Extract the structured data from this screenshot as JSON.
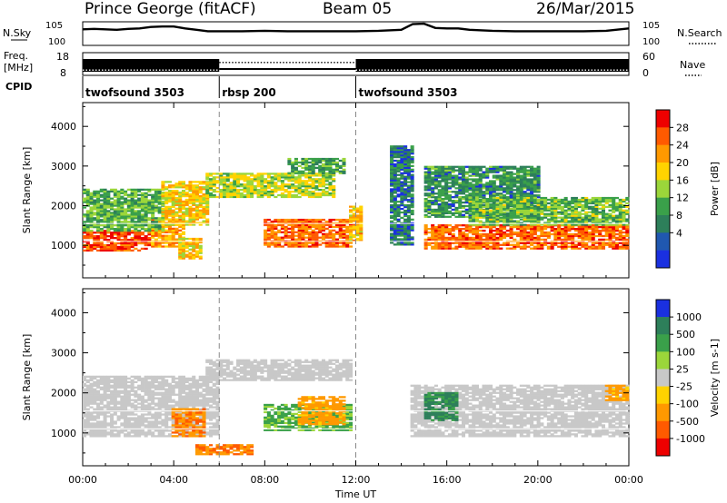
{
  "header": {
    "station": "Prince George (fitACF)",
    "beam": "Beam 05",
    "date": "26/Mar/2015"
  },
  "chart_data": [
    {
      "type": "line",
      "title": "",
      "ylabel": "N.Sky",
      "ylabel_right": "N.Search",
      "y_ticks_left": [
        "10^5",
        "10^0"
      ],
      "y_ticks_right": [
        "10^5",
        "10^0"
      ],
      "x_range_hours": [
        0,
        24
      ],
      "series": [
        {
          "name": "N.Sky",
          "style": "solid",
          "x_hours": [
            0,
            0.5,
            1,
            1.5,
            2,
            2.5,
            3,
            3.5,
            4,
            4.5,
            5,
            5.5,
            6,
            7,
            8,
            9,
            10,
            11,
            12,
            13,
            14,
            14.5,
            15,
            15.5,
            16,
            16.5,
            17,
            18,
            19,
            20,
            21,
            22,
            23,
            24
          ],
          "log_value": [
            3.4,
            3.5,
            3.4,
            3.3,
            3.5,
            3.6,
            3.9,
            4.0,
            4.0,
            3.6,
            3.3,
            3.0,
            3.0,
            3.0,
            3.1,
            3.0,
            3.0,
            3.0,
            3.0,
            3.1,
            3.3,
            4.5,
            4.6,
            3.7,
            3.6,
            3.6,
            3.3,
            3.1,
            3.0,
            3.0,
            3.0,
            3.0,
            3.1,
            3.6
          ]
        },
        {
          "name": "N.Search",
          "style": "dotted",
          "x_hours": [
            0,
            24
          ],
          "log_value": [
            0.0,
            0.0
          ]
        }
      ]
    },
    {
      "type": "line",
      "title": "",
      "ylabel": "Freq. [MHz]",
      "ylabel_right": "Nave",
      "y_ticks_left": [
        "18",
        "8"
      ],
      "y_ticks_right": [
        "60",
        "0"
      ],
      "x_range_hours": [
        0,
        24
      ],
      "series": [
        {
          "name": "Freq.",
          "style": "solid",
          "segments": [
            {
              "x0": 0,
              "x1": 6,
              "value": 10.8
            },
            {
              "x0": 6,
              "x1": 12,
              "value": 10.8
            },
            {
              "x0": 12,
              "x1": 24,
              "value": 10.8
            }
          ]
        },
        {
          "name": "Nave",
          "style": "dotted",
          "segments": [
            {
              "x0": 0,
              "x1": 6,
              "value": 14
            },
            {
              "x0": 6,
              "x1": 12,
              "value": 34
            },
            {
              "x0": 12,
              "x1": 24,
              "value": 14
            }
          ]
        }
      ]
    },
    {
      "type": "table",
      "title": "CPID",
      "segments": [
        {
          "label": "twofsound 3503",
          "start_hour": 0,
          "end_hour": 6
        },
        {
          "label": "rbsp 200",
          "start_hour": 6,
          "end_hour": 12
        },
        {
          "label": "twofsound 3503",
          "start_hour": 12,
          "end_hour": 24
        }
      ]
    },
    {
      "type": "heatmap",
      "title": "",
      "xlabel": "",
      "ylabel": "Slant Range [km]",
      "x_range_hours": [
        0,
        24
      ],
      "ylim": [
        180,
        4600
      ],
      "y_ticks": [
        1000,
        2000,
        3000,
        4000
      ],
      "colorbar": {
        "label": "Power [dB]",
        "ticks": [
          "28",
          "24",
          "20",
          "16",
          "12",
          "8",
          "4"
        ],
        "colors": [
          "#ee0000",
          "#ff5a00",
          "#ff9900",
          "#ffd300",
          "#9bd63a",
          "#3aa04a",
          "#2d7f5a",
          "#2058b0",
          "#1a30e0"
        ]
      },
      "regions": [
        {
          "x0": 0.0,
          "x1": 3.0,
          "r0": 850,
          "r1": 1350,
          "value": 27
        },
        {
          "x0": 3.0,
          "x1": 4.5,
          "r0": 950,
          "r1": 1650,
          "value": 22
        },
        {
          "x0": 0.0,
          "x1": 3.5,
          "r0": 1350,
          "r1": 2400,
          "value": 11
        },
        {
          "x0": 3.5,
          "x1": 5.5,
          "r0": 1500,
          "r1": 2600,
          "value": 18
        },
        {
          "x0": 4.2,
          "x1": 5.2,
          "r0": 650,
          "r1": 1150,
          "value": 19
        },
        {
          "x0": 5.5,
          "x1": 11.0,
          "r0": 2200,
          "r1": 2800,
          "value": 15
        },
        {
          "x0": 9.0,
          "x1": 11.5,
          "r0": 2800,
          "r1": 3200,
          "value": 9
        },
        {
          "x0": 8.0,
          "x1": 11.8,
          "r0": 950,
          "r1": 1650,
          "value": 25
        },
        {
          "x0": 11.8,
          "x1": 12.2,
          "r0": 1100,
          "r1": 2000,
          "value": 20
        },
        {
          "x0": 13.5,
          "x1": 14.5,
          "r0": 1000,
          "r1": 3500,
          "value": 6
        },
        {
          "x0": 15.0,
          "x1": 20.0,
          "r0": 1700,
          "r1": 3000,
          "value": 8
        },
        {
          "x0": 15.0,
          "x1": 24.0,
          "r0": 900,
          "r1": 1500,
          "value": 25
        },
        {
          "x0": 17.0,
          "x1": 24.0,
          "r0": 1500,
          "r1": 2200,
          "value": 12
        }
      ]
    },
    {
      "type": "heatmap",
      "title": "",
      "xlabel": "Time UT",
      "ylabel": "Slant Range [km]",
      "x_range_hours": [
        0,
        24
      ],
      "ylim": [
        180,
        4600
      ],
      "y_ticks": [
        1000,
        2000,
        3000,
        4000
      ],
      "x_ticks": [
        "00:00",
        "04:00",
        "08:00",
        "12:00",
        "16:00",
        "20:00",
        "00:00"
      ],
      "colorbar": {
        "label": "Velocity [m s-1]",
        "ticks": [
          "1000",
          "500",
          "100",
          "25",
          "-25",
          "-100",
          "-500",
          "-1000"
        ],
        "colors": [
          "#1a30e0",
          "#2d7f5a",
          "#3aa04a",
          "#9bd63a",
          "#c8c8c8",
          "#ffd300",
          "#ff9900",
          "#ff5a00",
          "#ee0000"
        ]
      },
      "regions": [
        {
          "x0": 0.0,
          "x1": 6.0,
          "r0": 900,
          "r1": 2400,
          "value": 0
        },
        {
          "x0": 4.0,
          "x1": 5.3,
          "r0": 900,
          "r1": 1600,
          "value": -450
        },
        {
          "x0": 5.5,
          "x1": 11.8,
          "r0": 2300,
          "r1": 2800,
          "value": 0
        },
        {
          "x0": 8.0,
          "x1": 11.8,
          "r0": 1050,
          "r1": 1700,
          "value": 120
        },
        {
          "x0": 9.5,
          "x1": 11.5,
          "r0": 1200,
          "r1": 1900,
          "value": -150
        },
        {
          "x0": 14.5,
          "x1": 24.0,
          "r0": 900,
          "r1": 2200,
          "value": 0
        },
        {
          "x0": 15.0,
          "x1": 16.5,
          "r0": 1300,
          "r1": 2000,
          "value": 600
        },
        {
          "x0": 23.0,
          "x1": 24.0,
          "r0": 1800,
          "r1": 2200,
          "value": -150
        },
        {
          "x0": 5.0,
          "x1": 7.5,
          "r0": 450,
          "r1": 700,
          "value": -450
        }
      ]
    }
  ]
}
